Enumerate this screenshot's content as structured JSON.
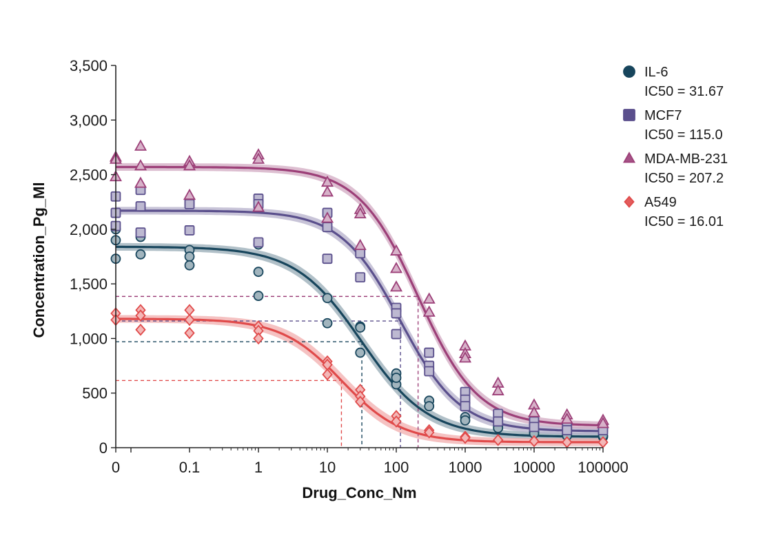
{
  "chart_data": {
    "type": "scatter",
    "title": "",
    "xlabel": "Drug_Conc_Nm",
    "ylabel": "Concentration_Pg_Ml",
    "x_scale": "log",
    "x_tick_labels": [
      "0",
      "0.1",
      "1",
      "10",
      "100",
      "1000",
      "10000",
      "100000"
    ],
    "y_tick_labels": [
      "0",
      "500",
      "1,000",
      "1,500",
      "2,000",
      "2,500",
      "3,000",
      "3,500"
    ],
    "ylim": [
      0,
      3500
    ],
    "legend_position": "top-right",
    "grid": false,
    "series": [
      {
        "name": "IL-6",
        "ic50_label": "IC50 = 31.67",
        "ic50": 31.67,
        "marker": "circle",
        "color": "#17455c",
        "bottom": 100,
        "top": 1840,
        "hill": 0.9,
        "points": [
          {
            "x": 0.0085,
            "y": 1900
          },
          {
            "x": 0.0085,
            "y": 1730
          },
          {
            "x": 0.0085,
            "y": 2000
          },
          {
            "x": 0.0195,
            "y": 1770
          },
          {
            "x": 0.0195,
            "y": 1930
          },
          {
            "x": 0.1,
            "y": 1810
          },
          {
            "x": 0.1,
            "y": 1750
          },
          {
            "x": 0.1,
            "y": 1670
          },
          {
            "x": 1,
            "y": 1610
          },
          {
            "x": 1,
            "y": 1390
          },
          {
            "x": 1,
            "y": 1860
          },
          {
            "x": 10,
            "y": 1370
          },
          {
            "x": 10,
            "y": 1140
          },
          {
            "x": 30,
            "y": 1110
          },
          {
            "x": 30,
            "y": 870
          },
          {
            "x": 30,
            "y": 1100
          },
          {
            "x": 100,
            "y": 680
          },
          {
            "x": 100,
            "y": 580
          },
          {
            "x": 100,
            "y": 640
          },
          {
            "x": 300,
            "y": 430
          },
          {
            "x": 300,
            "y": 380
          },
          {
            "x": 1000,
            "y": 280
          },
          {
            "x": 1000,
            "y": 250
          },
          {
            "x": 3000,
            "y": 200
          },
          {
            "x": 3000,
            "y": 180
          },
          {
            "x": 10000,
            "y": 150
          },
          {
            "x": 10000,
            "y": 130
          },
          {
            "x": 30000,
            "y": 120
          },
          {
            "x": 30000,
            "y": 110
          },
          {
            "x": 100000,
            "y": 100
          },
          {
            "x": 100000,
            "y": 110
          }
        ]
      },
      {
        "name": "MCF7",
        "ic50_label": "IC50 = 115.0",
        "ic50": 115.0,
        "marker": "square",
        "color": "#5a4f8c",
        "bottom": 150,
        "top": 2170,
        "hill": 1.0,
        "points": [
          {
            "x": 0.0085,
            "y": 2300
          },
          {
            "x": 0.0085,
            "y": 2150
          },
          {
            "x": 0.0085,
            "y": 2030
          },
          {
            "x": 0.0195,
            "y": 2360
          },
          {
            "x": 0.0195,
            "y": 2210
          },
          {
            "x": 0.0195,
            "y": 1970
          },
          {
            "x": 0.1,
            "y": 2250
          },
          {
            "x": 0.1,
            "y": 2230
          },
          {
            "x": 0.1,
            "y": 1990
          },
          {
            "x": 1,
            "y": 2280
          },
          {
            "x": 1,
            "y": 2230
          },
          {
            "x": 1,
            "y": 1880
          },
          {
            "x": 10,
            "y": 2150
          },
          {
            "x": 10,
            "y": 2020
          },
          {
            "x": 10,
            "y": 1730
          },
          {
            "x": 30,
            "y": 1780
          },
          {
            "x": 30,
            "y": 1560
          },
          {
            "x": 100,
            "y": 1280
          },
          {
            "x": 100,
            "y": 1230
          },
          {
            "x": 100,
            "y": 1040
          },
          {
            "x": 300,
            "y": 870
          },
          {
            "x": 300,
            "y": 750
          },
          {
            "x": 300,
            "y": 700
          },
          {
            "x": 1000,
            "y": 510
          },
          {
            "x": 1000,
            "y": 440
          },
          {
            "x": 1000,
            "y": 380
          },
          {
            "x": 3000,
            "y": 310
          },
          {
            "x": 3000,
            "y": 240
          },
          {
            "x": 10000,
            "y": 240
          },
          {
            "x": 10000,
            "y": 190
          },
          {
            "x": 30000,
            "y": 190
          },
          {
            "x": 30000,
            "y": 160
          },
          {
            "x": 100000,
            "y": 180
          },
          {
            "x": 100000,
            "y": 160
          }
        ]
      },
      {
        "name": "MDA-MB-231",
        "ic50_label": "IC50 = 207.2",
        "ic50": 207.2,
        "marker": "triangle",
        "color": "#9c3f78",
        "bottom": 200,
        "top": 2570,
        "hill": 1.0,
        "points": [
          {
            "x": 0.0085,
            "y": 2660
          },
          {
            "x": 0.0085,
            "y": 2640
          },
          {
            "x": 0.0085,
            "y": 2480
          },
          {
            "x": 0.0195,
            "y": 2760
          },
          {
            "x": 0.0195,
            "y": 2580
          },
          {
            "x": 0.0195,
            "y": 2420
          },
          {
            "x": 0.1,
            "y": 2620
          },
          {
            "x": 0.1,
            "y": 2580
          },
          {
            "x": 0.1,
            "y": 2310
          },
          {
            "x": 1,
            "y": 2680
          },
          {
            "x": 1,
            "y": 2640
          },
          {
            "x": 1,
            "y": 2200
          },
          {
            "x": 10,
            "y": 2430
          },
          {
            "x": 10,
            "y": 2340
          },
          {
            "x": 10,
            "y": 2100
          },
          {
            "x": 30,
            "y": 2180
          },
          {
            "x": 30,
            "y": 2140
          },
          {
            "x": 30,
            "y": 1850
          },
          {
            "x": 100,
            "y": 1800
          },
          {
            "x": 100,
            "y": 1640
          },
          {
            "x": 100,
            "y": 1470
          },
          {
            "x": 300,
            "y": 1360
          },
          {
            "x": 300,
            "y": 1240
          },
          {
            "x": 1000,
            "y": 930
          },
          {
            "x": 1000,
            "y": 860
          },
          {
            "x": 1000,
            "y": 820
          },
          {
            "x": 3000,
            "y": 590
          },
          {
            "x": 3000,
            "y": 520
          },
          {
            "x": 10000,
            "y": 390
          },
          {
            "x": 10000,
            "y": 320
          },
          {
            "x": 30000,
            "y": 300
          },
          {
            "x": 30000,
            "y": 260
          },
          {
            "x": 100000,
            "y": 250
          },
          {
            "x": 100000,
            "y": 220
          }
        ]
      },
      {
        "name": "A549",
        "ic50_label": "IC50 = 16.01",
        "ic50": 16.01,
        "marker": "diamond",
        "color": "#e04a4a",
        "bottom": 50,
        "top": 1180,
        "hill": 1.0,
        "points": [
          {
            "x": 0.0085,
            "y": 1230
          },
          {
            "x": 0.0085,
            "y": 1170
          },
          {
            "x": 0.0195,
            "y": 1260
          },
          {
            "x": 0.0195,
            "y": 1210
          },
          {
            "x": 0.0195,
            "y": 1080
          },
          {
            "x": 0.1,
            "y": 1260
          },
          {
            "x": 0.1,
            "y": 1170
          },
          {
            "x": 0.1,
            "y": 1050
          },
          {
            "x": 1,
            "y": 1110
          },
          {
            "x": 1,
            "y": 1070
          },
          {
            "x": 1,
            "y": 1000
          },
          {
            "x": 10,
            "y": 790
          },
          {
            "x": 10,
            "y": 760
          },
          {
            "x": 10,
            "y": 670
          },
          {
            "x": 30,
            "y": 530
          },
          {
            "x": 30,
            "y": 470
          },
          {
            "x": 30,
            "y": 420
          },
          {
            "x": 100,
            "y": 290
          },
          {
            "x": 100,
            "y": 240
          },
          {
            "x": 300,
            "y": 160
          },
          {
            "x": 300,
            "y": 140
          },
          {
            "x": 1000,
            "y": 100
          },
          {
            "x": 1000,
            "y": 90
          },
          {
            "x": 3000,
            "y": 70
          },
          {
            "x": 10000,
            "y": 60
          },
          {
            "x": 30000,
            "y": 50
          },
          {
            "x": 100000,
            "y": 50
          }
        ]
      }
    ]
  }
}
